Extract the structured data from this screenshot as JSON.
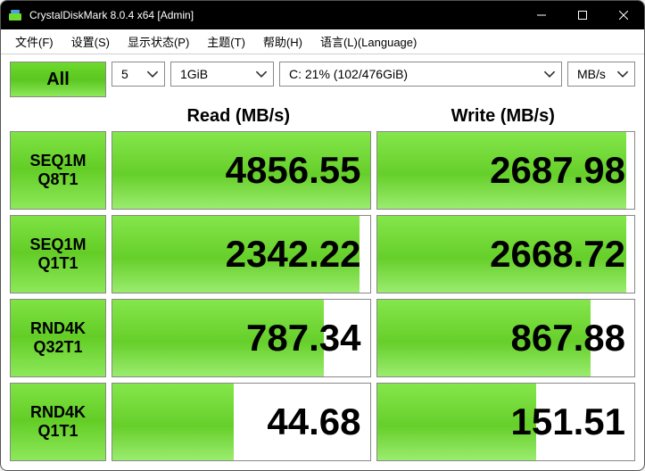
{
  "window": {
    "title": "CrystalDiskMark 8.0.4 x64 [Admin]"
  },
  "menu": {
    "file": "文件(F)",
    "settings": "设置(S)",
    "display": "显示状态(P)",
    "theme": "主题(T)",
    "help": "帮助(H)",
    "language": "语言(L)(Language)"
  },
  "controls": {
    "all_label": "All",
    "count": "5",
    "size": "1GiB",
    "drive": "C: 21% (102/476GiB)",
    "unit": "MB/s"
  },
  "headers": {
    "read": "Read (MB/s)",
    "write": "Write (MB/s)"
  },
  "tests": [
    {
      "l1": "SEQ1M",
      "l2": "Q8T1",
      "read": "4856.55",
      "read_pct": 100,
      "write": "2687.98",
      "write_pct": 97
    },
    {
      "l1": "SEQ1M",
      "l2": "Q1T1",
      "read": "2342.22",
      "read_pct": 96,
      "write": "2668.72",
      "write_pct": 97
    },
    {
      "l1": "RND4K",
      "l2": "Q32T1",
      "read": "787.34",
      "read_pct": 82,
      "write": "867.88",
      "write_pct": 83
    },
    {
      "l1": "RND4K",
      "l2": "Q1T1",
      "read": "44.68",
      "read_pct": 47,
      "write": "151.51",
      "write_pct": 62
    }
  ],
  "colors": {
    "titlebar_bg": "#000000",
    "titlebar_fg": "#ffffff",
    "green_grad_top": "#84e64b",
    "green_grad_mid": "#66cf2a",
    "green_grad_bot": "#9aec6e",
    "border": "#888888",
    "window_bg": "#ffffff"
  },
  "fontsize": {
    "value": 42,
    "header": 20,
    "testlabel": 18,
    "menu": 13,
    "title": 12
  }
}
